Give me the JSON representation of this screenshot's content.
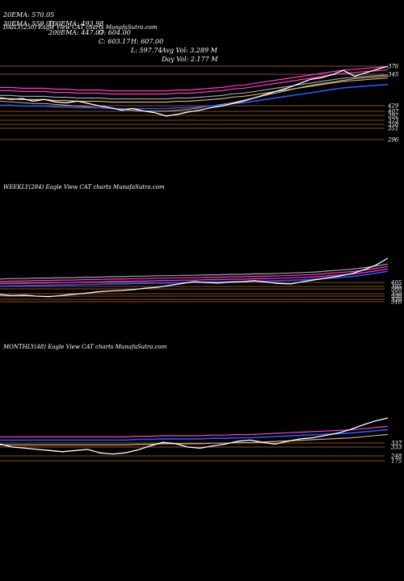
{
  "header": {
    "row1": [
      "20EMA: 570.05",
      "100EMA: 493.98",
      "O: 604.00",
      "H: 607.00",
      "Avg Vol: 3.289 M"
    ],
    "row2": [
      "30EMA: 559.03",
      "200EMA: 447.07",
      "C: 603.17",
      "L: 597.74",
      "Day Vol: 2.177 M"
    ]
  },
  "colors": {
    "price": "#ffffff",
    "level": "#b86a2c",
    "ema_blue": "#2b56ff",
    "ema_pink": "#ff3fc8",
    "ema_tan": "#d6b07a",
    "ema_gray": "#9aa7b5"
  },
  "chart_data": [
    {
      "type": "line",
      "title": "DAILY(250) Eagle  View  CAT charts MunafaSutra.com",
      "price_labels": [
        "376",
        "345",
        "429",
        "407",
        "392",
        "373",
        "358",
        "351",
        "296"
      ],
      "series": [
        {
          "values": [
            0.62,
            0.6,
            0.61,
            0.58,
            0.6,
            0.57,
            0.56,
            0.58,
            0.55,
            0.52,
            0.5,
            0.47,
            0.49,
            0.46,
            0.44,
            0.4,
            0.42,
            0.45,
            0.47,
            0.5,
            0.52,
            0.55,
            0.58,
            0.62,
            0.66,
            0.7,
            0.74,
            0.79,
            0.84,
            0.86,
            0.9,
            0.95,
            0.88,
            0.92,
            0.96,
            1.0
          ]
        },
        {
          "values": [
            0.58,
            0.57,
            0.56,
            0.55,
            0.55,
            0.54,
            0.53,
            0.52,
            0.51,
            0.5,
            0.49,
            0.48,
            0.47,
            0.46,
            0.46,
            0.46,
            0.47,
            0.48,
            0.5,
            0.52,
            0.54,
            0.56,
            0.59,
            0.62,
            0.65,
            0.68,
            0.71,
            0.74,
            0.77,
            0.79,
            0.81,
            0.83,
            0.85,
            0.86,
            0.87,
            0.88
          ]
        },
        {
          "values": [
            0.53,
            0.53,
            0.52,
            0.52,
            0.52,
            0.51,
            0.51,
            0.5,
            0.5,
            0.5,
            0.49,
            0.49,
            0.49,
            0.49,
            0.49,
            0.49,
            0.5,
            0.5,
            0.51,
            0.52,
            0.53,
            0.55,
            0.56,
            0.58,
            0.6,
            0.62,
            0.64,
            0.66,
            0.68,
            0.7,
            0.72,
            0.74,
            0.75,
            0.76,
            0.77,
            0.78
          ]
        }
      ]
    },
    {
      "type": "line",
      "title": "WEEKLY(284) Eagle  View  CAT charts MunafaSutra.com",
      "price_labels": [
        "405",
        "395",
        "380",
        "350",
        "330",
        "320",
        "310"
      ],
      "series": [
        {
          "values": [
            0.22,
            0.2,
            0.21,
            0.19,
            0.18,
            0.2,
            0.23,
            0.25,
            0.28,
            0.3,
            0.31,
            0.33,
            0.36,
            0.38,
            0.42,
            0.46,
            0.5,
            0.48,
            0.47,
            0.49,
            0.5,
            0.52,
            0.49,
            0.46,
            0.45,
            0.5,
            0.54,
            0.58,
            0.62,
            0.67,
            0.75,
            0.85,
            1.0
          ]
        },
        {
          "values": [
            0.4,
            0.41,
            0.41,
            0.42,
            0.42,
            0.43,
            0.43,
            0.44,
            0.44,
            0.45,
            0.45,
            0.46,
            0.46,
            0.47,
            0.47,
            0.48,
            0.48,
            0.49,
            0.49,
            0.5,
            0.5,
            0.51,
            0.51,
            0.52,
            0.53,
            0.54,
            0.55,
            0.57,
            0.59,
            0.61,
            0.64,
            0.68,
            0.72
          ]
        }
      ]
    },
    {
      "type": "line",
      "title": "MONTHLY(48) Eagle  View  CAT charts MunafaSutra.com",
      "price_labels": [
        "337",
        "333",
        "248",
        "175"
      ],
      "series": [
        {
          "values": [
            0.55,
            0.5,
            0.48,
            0.46,
            0.44,
            0.42,
            0.44,
            0.46,
            0.4,
            0.38,
            0.4,
            0.45,
            0.52,
            0.58,
            0.56,
            0.5,
            0.48,
            0.52,
            0.55,
            0.6,
            0.62,
            0.58,
            0.55,
            0.6,
            0.64,
            0.66,
            0.7,
            0.74,
            0.8,
            0.88,
            0.95,
            1.0
          ]
        },
        {
          "values": [
            0.62,
            0.62,
            0.62,
            0.62,
            0.62,
            0.62,
            0.62,
            0.62,
            0.62,
            0.62,
            0.62,
            0.63,
            0.63,
            0.64,
            0.64,
            0.64,
            0.64,
            0.65,
            0.65,
            0.66,
            0.66,
            0.67,
            0.68,
            0.69,
            0.7,
            0.71,
            0.72,
            0.73,
            0.74,
            0.76,
            0.78,
            0.8
          ]
        }
      ]
    }
  ]
}
